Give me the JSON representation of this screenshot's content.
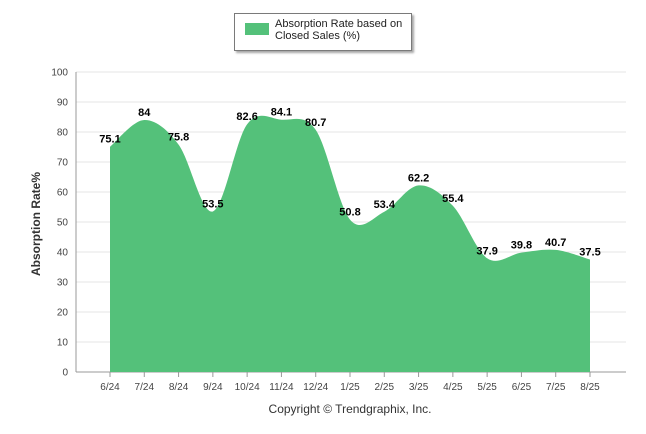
{
  "chart_data": {
    "type": "area",
    "categories": [
      "6/24",
      "7/24",
      "8/24",
      "9/24",
      "10/24",
      "11/24",
      "12/24",
      "1/25",
      "2/25",
      "3/25",
      "4/25",
      "5/25",
      "6/25",
      "7/25",
      "8/25"
    ],
    "series": [
      {
        "name": "Absorption Rate based on Closed Sales (%)",
        "values": [
          75.1,
          84,
          75.8,
          53.5,
          82.6,
          84.1,
          80.7,
          50.8,
          53.4,
          62.2,
          55.4,
          37.9,
          39.8,
          40.7,
          37.5
        ],
        "color": "#54c17a"
      }
    ],
    "data_labels": [
      "75.1",
      "84",
      "75.8",
      "53.5",
      "82.6",
      "84.1",
      "80.7",
      "50.8",
      "53.4",
      "62.2",
      "55.4",
      "37.9",
      "39.8",
      "40.7",
      "37.5"
    ],
    "ylabel": "Absorption Rate%",
    "xlabel": "",
    "ylim": [
      0,
      100
    ],
    "yticks": [
      "0",
      "10",
      "20",
      "30",
      "40",
      "50",
      "60",
      "70",
      "80",
      "90",
      "100"
    ],
    "grid": true,
    "legend_position": "top-center"
  },
  "legend": {
    "label_line1": "Absorption Rate based on",
    "label_line2": "Closed Sales (%)"
  },
  "footer": {
    "copyright": "Copyright © Trendgraphix, Inc."
  }
}
